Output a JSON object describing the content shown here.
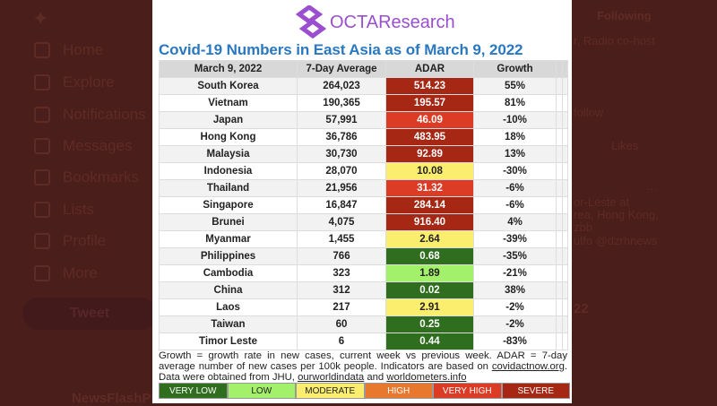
{
  "background": {
    "nav": [
      "Home",
      "Explore",
      "Notifications",
      "Messages",
      "Bookmarks",
      "Lists",
      "Profile",
      "More"
    ],
    "tweet_button": "Tweet",
    "account": "NewsFlashPH",
    "right_tab": "Following",
    "right_tab2": "Likes",
    "snippets": [
      "r, Radio co-host",
      "follow",
      "...",
      "or-Leste at",
      "rea, Hong Kong,",
      "zbb",
      "ulfo @dzrhnews",
      "22"
    ]
  },
  "logo": "OCTAResearch",
  "title": "Covid-19 Numbers in East Asia as of March 9, 2022",
  "table": {
    "headers": [
      "March 9, 2022",
      "7-Day Average",
      "ADAR",
      "Growth"
    ],
    "rows": [
      {
        "country": "South Korea",
        "avg": "264,023",
        "adar": "514.23",
        "level": "severe",
        "growth": "55%"
      },
      {
        "country": "Vietnam",
        "avg": "190,365",
        "adar": "195.57",
        "level": "severe",
        "growth": "81%"
      },
      {
        "country": "Japan",
        "avg": "57,991",
        "adar": "46.09",
        "level": "very_high",
        "growth": "-10%"
      },
      {
        "country": "Hong Kong",
        "avg": "36,786",
        "adar": "483.95",
        "level": "severe",
        "growth": "18%"
      },
      {
        "country": "Malaysia",
        "avg": "30,730",
        "adar": "92.89",
        "level": "severe",
        "growth": "13%"
      },
      {
        "country": "Indonesia",
        "avg": "28,070",
        "adar": "10.08",
        "level": "moderate",
        "growth": "-30%"
      },
      {
        "country": "Thailand",
        "avg": "21,956",
        "adar": "31.32",
        "level": "very_high",
        "growth": "-6%"
      },
      {
        "country": "Singapore",
        "avg": "16,847",
        "adar": "284.14",
        "level": "severe",
        "growth": "-6%"
      },
      {
        "country": "Brunei",
        "avg": "4,075",
        "adar": "916.40",
        "level": "severe",
        "growth": "4%"
      },
      {
        "country": "Myanmar",
        "avg": "1,455",
        "adar": "2.64",
        "level": "moderate",
        "growth": "-39%"
      },
      {
        "country": "Philippines",
        "avg": "766",
        "adar": "0.68",
        "level": "very_low",
        "growth": "-35%"
      },
      {
        "country": "Cambodia",
        "avg": "323",
        "adar": "1.89",
        "level": "low",
        "growth": "-21%"
      },
      {
        "country": "China",
        "avg": "312",
        "adar": "0.02",
        "level": "very_low",
        "growth": "38%"
      },
      {
        "country": "Laos",
        "avg": "217",
        "adar": "2.91",
        "level": "moderate",
        "growth": "-2%"
      },
      {
        "country": "Taiwan",
        "avg": "60",
        "adar": "0.25",
        "level": "very_low",
        "growth": "-2%"
      },
      {
        "country": "Timor Leste",
        "avg": "6",
        "adar": "0.44",
        "level": "very_low",
        "growth": "-83%"
      }
    ]
  },
  "note": {
    "text1": "Growth = growth rate in new cases, current week vs previous week. ADAR = 7-day average number of new cases per 100k people. Indicators are based on ",
    "link1": "covidactnow.org",
    "text2": ". Data were obtained from JHU, ",
    "link2": "ourworldindata",
    "text3": " and ",
    "link3": "worldometers.info"
  },
  "legend": [
    {
      "key": "very_low",
      "label": "VERY LOW",
      "color": "#2f6e1f",
      "text": "#ffffff"
    },
    {
      "key": "low",
      "label": "LOW",
      "color": "#a3f06a",
      "text": "#222222"
    },
    {
      "key": "moderate",
      "label": "MODERATE",
      "color": "#fbed6e",
      "text": "#222222"
    },
    {
      "key": "high",
      "label": "HIGH",
      "color": "#e8782e",
      "text": "#ffffff"
    },
    {
      "key": "very_high",
      "label": "VERY HIGH",
      "color": "#dc3b25",
      "text": "#ffffff"
    },
    {
      "key": "severe",
      "label": "SEVERE",
      "color": "#a52714",
      "text": "#ffffff"
    }
  ]
}
